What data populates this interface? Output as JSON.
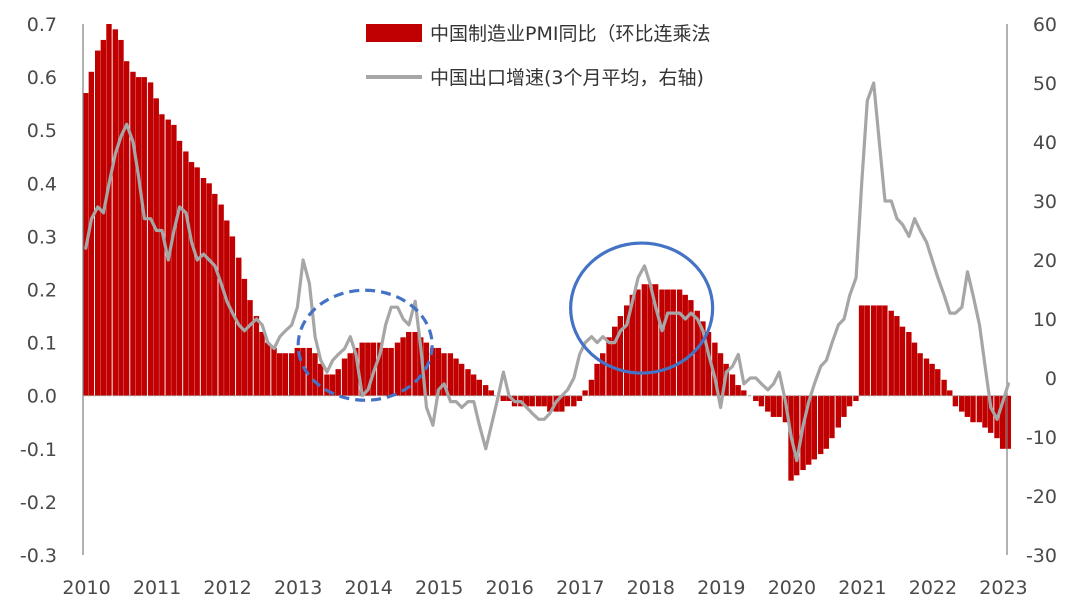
{
  "chart_data": {
    "type": "bar+line",
    "legend": [
      {
        "name": "中国制造业PMI同比（环比连乘法",
        "kind": "bar",
        "color": "#c00000"
      },
      {
        "name": "中国出口增速(3个月平均，右轴)",
        "kind": "line",
        "color": "#a6a6a6"
      }
    ],
    "x_tick_labels": [
      "2010",
      "2011",
      "2012",
      "2013",
      "2014",
      "2015",
      "2016",
      "2017",
      "2018",
      "2019",
      "2020",
      "2021",
      "2022",
      "2023"
    ],
    "x_range": [
      2010.0,
      2023.1
    ],
    "y_left": {
      "range": [
        -0.3,
        0.7
      ],
      "ticks": [
        "-0.3",
        "-0.2",
        "-0.1",
        "0.0",
        "0.1",
        "0.2",
        "0.3",
        "0.4",
        "0.5",
        "0.6",
        "0.7"
      ]
    },
    "y_right": {
      "range": [
        -30,
        60
      ],
      "ticks": [
        "-30",
        "-20",
        "-10",
        "0",
        "10",
        "20",
        "30",
        "40",
        "50",
        "60"
      ]
    },
    "grid": false,
    "legend_position": "top-center",
    "bar_series": {
      "name": "中国制造业PMI同比（环比连乘法",
      "points": [
        [
          2010.0,
          0.57
        ],
        [
          2010.08,
          0.61
        ],
        [
          2010.17,
          0.65
        ],
        [
          2010.25,
          0.67
        ],
        [
          2010.33,
          0.7
        ],
        [
          2010.42,
          0.69
        ],
        [
          2010.5,
          0.67
        ],
        [
          2010.58,
          0.63
        ],
        [
          2010.67,
          0.61
        ],
        [
          2010.75,
          0.6
        ],
        [
          2010.83,
          0.6
        ],
        [
          2010.92,
          0.59
        ],
        [
          2011.0,
          0.56
        ],
        [
          2011.08,
          0.53
        ],
        [
          2011.17,
          0.52
        ],
        [
          2011.25,
          0.51
        ],
        [
          2011.33,
          0.48
        ],
        [
          2011.42,
          0.46
        ],
        [
          2011.5,
          0.44
        ],
        [
          2011.58,
          0.43
        ],
        [
          2011.67,
          0.41
        ],
        [
          2011.75,
          0.4
        ],
        [
          2011.83,
          0.38
        ],
        [
          2011.92,
          0.36
        ],
        [
          2012.0,
          0.33
        ],
        [
          2012.08,
          0.3
        ],
        [
          2012.17,
          0.26
        ],
        [
          2012.25,
          0.22
        ],
        [
          2012.33,
          0.18
        ],
        [
          2012.42,
          0.15
        ],
        [
          2012.5,
          0.12
        ],
        [
          2012.58,
          0.1
        ],
        [
          2012.67,
          0.09
        ],
        [
          2012.75,
          0.08
        ],
        [
          2012.83,
          0.08
        ],
        [
          2012.92,
          0.08
        ],
        [
          2013.0,
          0.09
        ],
        [
          2013.08,
          0.09
        ],
        [
          2013.17,
          0.09
        ],
        [
          2013.25,
          0.08
        ],
        [
          2013.33,
          0.06
        ],
        [
          2013.42,
          0.04
        ],
        [
          2013.5,
          0.04
        ],
        [
          2013.58,
          0.05
        ],
        [
          2013.67,
          0.07
        ],
        [
          2013.75,
          0.08
        ],
        [
          2013.83,
          0.09
        ],
        [
          2013.92,
          0.1
        ],
        [
          2014.0,
          0.1
        ],
        [
          2014.08,
          0.1
        ],
        [
          2014.17,
          0.1
        ],
        [
          2014.25,
          0.09
        ],
        [
          2014.33,
          0.09
        ],
        [
          2014.42,
          0.1
        ],
        [
          2014.5,
          0.11
        ],
        [
          2014.58,
          0.12
        ],
        [
          2014.67,
          0.12
        ],
        [
          2014.75,
          0.11
        ],
        [
          2014.83,
          0.1
        ],
        [
          2014.92,
          0.09
        ],
        [
          2015.0,
          0.09
        ],
        [
          2015.08,
          0.08
        ],
        [
          2015.17,
          0.08
        ],
        [
          2015.25,
          0.07
        ],
        [
          2015.33,
          0.06
        ],
        [
          2015.42,
          0.05
        ],
        [
          2015.5,
          0.04
        ],
        [
          2015.58,
          0.03
        ],
        [
          2015.67,
          0.02
        ],
        [
          2015.75,
          0.01
        ],
        [
          2015.83,
          0.0
        ],
        [
          2015.92,
          -0.01
        ],
        [
          2016.0,
          -0.01
        ],
        [
          2016.08,
          -0.02
        ],
        [
          2016.17,
          -0.02
        ],
        [
          2016.25,
          -0.02
        ],
        [
          2016.33,
          -0.02
        ],
        [
          2016.42,
          -0.02
        ],
        [
          2016.5,
          -0.02
        ],
        [
          2016.58,
          -0.03
        ],
        [
          2016.67,
          -0.03
        ],
        [
          2016.75,
          -0.03
        ],
        [
          2016.83,
          -0.02
        ],
        [
          2016.92,
          -0.02
        ],
        [
          2017.0,
          -0.01
        ],
        [
          2017.08,
          0.01
        ],
        [
          2017.17,
          0.03
        ],
        [
          2017.25,
          0.06
        ],
        [
          2017.33,
          0.08
        ],
        [
          2017.42,
          0.11
        ],
        [
          2017.5,
          0.13
        ],
        [
          2017.58,
          0.15
        ],
        [
          2017.67,
          0.17
        ],
        [
          2017.75,
          0.19
        ],
        [
          2017.83,
          0.2
        ],
        [
          2017.92,
          0.21
        ],
        [
          2018.0,
          0.21
        ],
        [
          2018.08,
          0.21
        ],
        [
          2018.17,
          0.2
        ],
        [
          2018.25,
          0.2
        ],
        [
          2018.33,
          0.2
        ],
        [
          2018.42,
          0.2
        ],
        [
          2018.5,
          0.19
        ],
        [
          2018.58,
          0.18
        ],
        [
          2018.67,
          0.16
        ],
        [
          2018.75,
          0.14
        ],
        [
          2018.83,
          0.12
        ],
        [
          2018.92,
          0.1
        ],
        [
          2019.0,
          0.08
        ],
        [
          2019.08,
          0.06
        ],
        [
          2019.17,
          0.04
        ],
        [
          2019.25,
          0.02
        ],
        [
          2019.33,
          0.01
        ],
        [
          2019.42,
          0.0
        ],
        [
          2019.5,
          -0.01
        ],
        [
          2019.58,
          -0.02
        ],
        [
          2019.67,
          -0.03
        ],
        [
          2019.75,
          -0.04
        ],
        [
          2019.83,
          -0.04
        ],
        [
          2019.92,
          -0.05
        ],
        [
          2020.0,
          -0.16
        ],
        [
          2020.08,
          -0.15
        ],
        [
          2020.17,
          -0.14
        ],
        [
          2020.25,
          -0.13
        ],
        [
          2020.33,
          -0.12
        ],
        [
          2020.42,
          -0.11
        ],
        [
          2020.5,
          -0.1
        ],
        [
          2020.58,
          -0.08
        ],
        [
          2020.67,
          -0.06
        ],
        [
          2020.75,
          -0.04
        ],
        [
          2020.83,
          -0.02
        ],
        [
          2020.92,
          -0.01
        ],
        [
          2021.0,
          0.17
        ],
        [
          2021.08,
          0.17
        ],
        [
          2021.17,
          0.17
        ],
        [
          2021.25,
          0.17
        ],
        [
          2021.33,
          0.17
        ],
        [
          2021.42,
          0.16
        ],
        [
          2021.5,
          0.15
        ],
        [
          2021.58,
          0.13
        ],
        [
          2021.67,
          0.12
        ],
        [
          2021.75,
          0.1
        ],
        [
          2021.83,
          0.08
        ],
        [
          2021.92,
          0.07
        ],
        [
          2022.0,
          0.06
        ],
        [
          2022.08,
          0.05
        ],
        [
          2022.17,
          0.03
        ],
        [
          2022.25,
          0.01
        ],
        [
          2022.33,
          -0.02
        ],
        [
          2022.42,
          -0.03
        ],
        [
          2022.5,
          -0.04
        ],
        [
          2022.58,
          -0.05
        ],
        [
          2022.67,
          -0.05
        ],
        [
          2022.75,
          -0.06
        ],
        [
          2022.83,
          -0.07
        ],
        [
          2022.92,
          -0.08
        ],
        [
          2023.0,
          -0.1
        ],
        [
          2023.08,
          -0.1
        ]
      ]
    },
    "line_series": {
      "name": "中国出口增速(3个月平均，右轴)",
      "points": [
        [
          2010.0,
          22
        ],
        [
          2010.08,
          27
        ],
        [
          2010.17,
          29
        ],
        [
          2010.25,
          28
        ],
        [
          2010.33,
          33
        ],
        [
          2010.42,
          38
        ],
        [
          2010.5,
          41
        ],
        [
          2010.58,
          43
        ],
        [
          2010.67,
          40
        ],
        [
          2010.75,
          34
        ],
        [
          2010.83,
          27
        ],
        [
          2010.92,
          27
        ],
        [
          2011.0,
          25
        ],
        [
          2011.08,
          25
        ],
        [
          2011.17,
          20
        ],
        [
          2011.25,
          25
        ],
        [
          2011.33,
          29
        ],
        [
          2011.42,
          28
        ],
        [
          2011.5,
          23
        ],
        [
          2011.58,
          20
        ],
        [
          2011.67,
          21
        ],
        [
          2011.75,
          20
        ],
        [
          2011.83,
          19
        ],
        [
          2011.92,
          16
        ],
        [
          2012.0,
          13
        ],
        [
          2012.08,
          11
        ],
        [
          2012.17,
          9
        ],
        [
          2012.25,
          8
        ],
        [
          2012.33,
          9
        ],
        [
          2012.42,
          10
        ],
        [
          2012.5,
          9
        ],
        [
          2012.58,
          6
        ],
        [
          2012.67,
          5
        ],
        [
          2012.75,
          7
        ],
        [
          2012.83,
          8
        ],
        [
          2012.92,
          9
        ],
        [
          2013.0,
          12
        ],
        [
          2013.08,
          20
        ],
        [
          2013.17,
          16
        ],
        [
          2013.25,
          7
        ],
        [
          2013.33,
          3
        ],
        [
          2013.42,
          1
        ],
        [
          2013.5,
          3
        ],
        [
          2013.58,
          4
        ],
        [
          2013.67,
          5
        ],
        [
          2013.75,
          7
        ],
        [
          2013.83,
          4
        ],
        [
          2013.92,
          -3
        ],
        [
          2014.0,
          -2
        ],
        [
          2014.08,
          1
        ],
        [
          2014.17,
          4
        ],
        [
          2014.25,
          9
        ],
        [
          2014.33,
          12
        ],
        [
          2014.42,
          12
        ],
        [
          2014.5,
          10
        ],
        [
          2014.58,
          9
        ],
        [
          2014.67,
          13
        ],
        [
          2014.75,
          5
        ],
        [
          2014.83,
          -5
        ],
        [
          2014.92,
          -8
        ],
        [
          2015.0,
          -2
        ],
        [
          2015.08,
          -1
        ],
        [
          2015.17,
          -4
        ],
        [
          2015.25,
          -4
        ],
        [
          2015.33,
          -5
        ],
        [
          2015.42,
          -4
        ],
        [
          2015.5,
          -4
        ],
        [
          2015.58,
          -8
        ],
        [
          2015.67,
          -12
        ],
        [
          2015.75,
          -8
        ],
        [
          2015.83,
          -4
        ],
        [
          2015.92,
          1
        ],
        [
          2016.0,
          -3
        ],
        [
          2016.08,
          -4
        ],
        [
          2016.17,
          -4
        ],
        [
          2016.25,
          -5
        ],
        [
          2016.33,
          -6
        ],
        [
          2016.42,
          -7
        ],
        [
          2016.5,
          -7
        ],
        [
          2016.58,
          -6
        ],
        [
          2016.67,
          -4
        ],
        [
          2016.75,
          -3
        ],
        [
          2016.83,
          -2
        ],
        [
          2016.92,
          0
        ],
        [
          2017.0,
          4
        ],
        [
          2017.08,
          6
        ],
        [
          2017.17,
          7
        ],
        [
          2017.25,
          6
        ],
        [
          2017.33,
          7
        ],
        [
          2017.42,
          6
        ],
        [
          2017.5,
          6
        ],
        [
          2017.58,
          8
        ],
        [
          2017.67,
          9
        ],
        [
          2017.75,
          13
        ],
        [
          2017.83,
          17
        ],
        [
          2017.92,
          19
        ],
        [
          2018.0,
          16
        ],
        [
          2018.08,
          12
        ],
        [
          2018.17,
          8
        ],
        [
          2018.25,
          11
        ],
        [
          2018.33,
          11
        ],
        [
          2018.42,
          11
        ],
        [
          2018.5,
          10
        ],
        [
          2018.58,
          11
        ],
        [
          2018.67,
          10
        ],
        [
          2018.75,
          8
        ],
        [
          2018.83,
          4
        ],
        [
          2018.92,
          0
        ],
        [
          2019.0,
          -5
        ],
        [
          2019.08,
          1
        ],
        [
          2019.17,
          2
        ],
        [
          2019.25,
          4
        ],
        [
          2019.33,
          -1
        ],
        [
          2019.42,
          0
        ],
        [
          2019.5,
          0
        ],
        [
          2019.58,
          -1
        ],
        [
          2019.67,
          -2
        ],
        [
          2019.75,
          -1
        ],
        [
          2019.83,
          1
        ],
        [
          2019.92,
          -4
        ],
        [
          2020.0,
          -10
        ],
        [
          2020.08,
          -14
        ],
        [
          2020.17,
          -8
        ],
        [
          2020.25,
          -4
        ],
        [
          2020.33,
          -1
        ],
        [
          2020.42,
          2
        ],
        [
          2020.5,
          3
        ],
        [
          2020.58,
          6
        ],
        [
          2020.67,
          9
        ],
        [
          2020.75,
          10
        ],
        [
          2020.83,
          14
        ],
        [
          2020.92,
          17
        ],
        [
          2021.0,
          33
        ],
        [
          2021.08,
          47
        ],
        [
          2021.17,
          50
        ],
        [
          2021.25,
          40
        ],
        [
          2021.33,
          30
        ],
        [
          2021.42,
          30
        ],
        [
          2021.5,
          27
        ],
        [
          2021.58,
          26
        ],
        [
          2021.67,
          24
        ],
        [
          2021.75,
          27
        ],
        [
          2021.83,
          25
        ],
        [
          2021.92,
          23
        ],
        [
          2022.0,
          20
        ],
        [
          2022.08,
          17
        ],
        [
          2022.17,
          14
        ],
        [
          2022.25,
          11
        ],
        [
          2022.33,
          11
        ],
        [
          2022.42,
          12
        ],
        [
          2022.5,
          18
        ],
        [
          2022.58,
          14
        ],
        [
          2022.67,
          9
        ],
        [
          2022.75,
          2
        ],
        [
          2022.83,
          -5
        ],
        [
          2022.92,
          -7
        ],
        [
          2023.0,
          -4
        ],
        [
          2023.08,
          -1
        ]
      ]
    },
    "annotations": [
      {
        "shape": "ellipse",
        "style": "dashed",
        "color": "#4472c4",
        "cx": 2014.0,
        "cy_left": 0.095
      },
      {
        "shape": "ellipse",
        "style": "solid",
        "color": "#4472c4",
        "cx": 2017.92,
        "cy_left": 0.165
      }
    ]
  }
}
